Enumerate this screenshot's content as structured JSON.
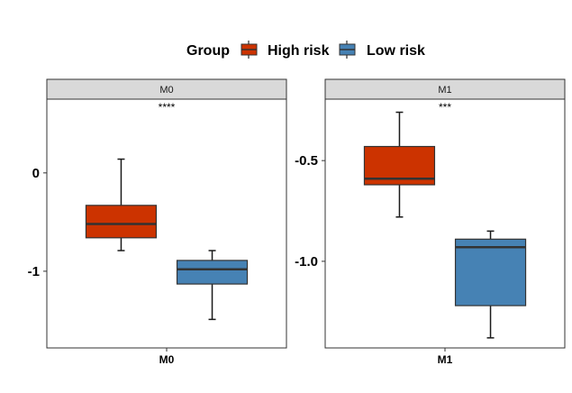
{
  "chart_data": {
    "type": "box",
    "legend": {
      "title": "Group",
      "position": "top",
      "entries": [
        {
          "name": "High risk",
          "color": "#CC3300"
        },
        {
          "name": "Low risk",
          "color": "#4682B4"
        }
      ]
    },
    "panels": [
      {
        "strip": "M0",
        "x_tick": "M0",
        "significance": "****",
        "ylim": [
          -1.78,
          0.75
        ],
        "y_ticks": [
          {
            "value": 0,
            "label": "0"
          },
          {
            "value": -1,
            "label": "-1"
          }
        ],
        "boxes": [
          {
            "group": "High risk",
            "min": -0.79,
            "q1": -0.66,
            "median": -0.52,
            "q3": -0.33,
            "max": 0.14
          },
          {
            "group": "Low risk",
            "min": -1.49,
            "q1": -1.13,
            "median": -0.98,
            "q3": -0.89,
            "max": -0.79
          }
        ]
      },
      {
        "strip": "M1",
        "x_tick": "M1",
        "significance": "***",
        "ylim": [
          -1.43,
          -0.195
        ],
        "y_ticks": [
          {
            "value": -0.5,
            "label": "-0.5"
          },
          {
            "value": -1.0,
            "label": "-1.0"
          }
        ],
        "boxes": [
          {
            "group": "High risk",
            "min": -0.78,
            "q1": -0.62,
            "median": -0.59,
            "q3": -0.43,
            "max": -0.26
          },
          {
            "group": "Low risk",
            "min": -1.38,
            "q1": -1.22,
            "median": -0.93,
            "q3": -0.89,
            "max": -0.85
          }
        ]
      }
    ],
    "grid": false
  }
}
